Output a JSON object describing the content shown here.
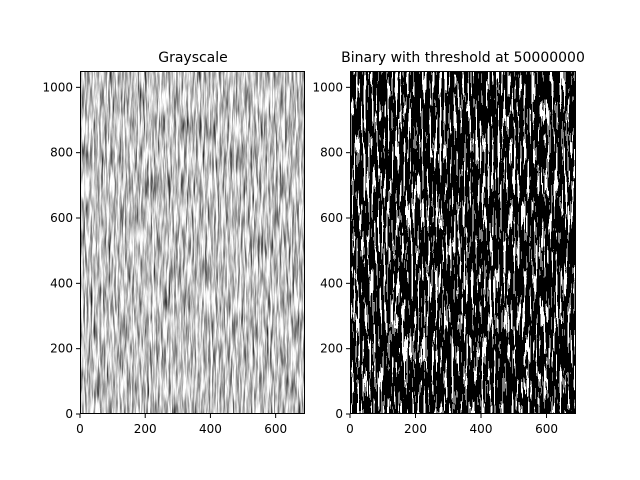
{
  "chart_data": [
    {
      "type": "heatmap",
      "title": "Grayscale",
      "colormap": "gray",
      "xlim": [
        0,
        690
      ],
      "ylim": [
        0,
        1050
      ],
      "xticks": [
        0,
        200,
        400,
        600
      ],
      "yticks": [
        0,
        200,
        400,
        600,
        800,
        1000
      ],
      "xlabel": "",
      "ylabel": "",
      "grid": false
    },
    {
      "type": "heatmap",
      "title": "Binary with threshold at 50000000",
      "colormap": "binary (black/white)",
      "xlim": [
        0,
        690
      ],
      "ylim": [
        0,
        1050
      ],
      "xticks": [
        0,
        200,
        400,
        600
      ],
      "yticks": [
        0,
        200,
        400,
        600,
        800,
        1000
      ],
      "xlabel": "",
      "ylabel": "",
      "grid": false
    }
  ]
}
